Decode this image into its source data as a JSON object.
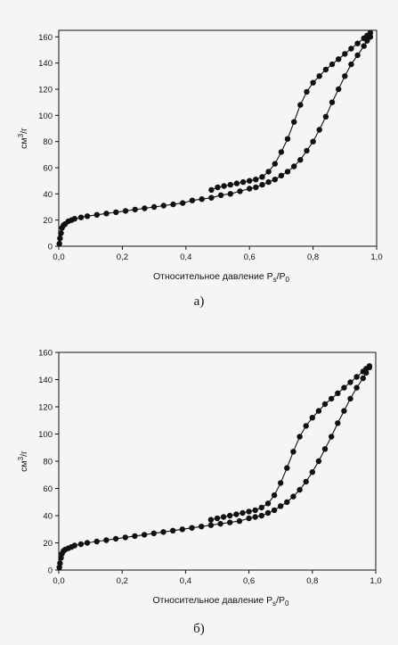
{
  "chart_data": [
    {
      "type": "scatter",
      "caption": "а)",
      "xlabel_main": "Относительное давление P",
      "xlabel_sub1": "s",
      "xlabel_mid": "/P",
      "xlabel_sub2": "0",
      "ylabel_main": "см",
      "ylabel_sup": "3",
      "ylabel_end": "/г",
      "xlim": [
        0,
        1.0
      ],
      "ylim": [
        0,
        165
      ],
      "xticks": [
        {
          "value": 0.0,
          "label": "0,0"
        },
        {
          "value": 0.2,
          "label": "0,2"
        },
        {
          "value": 0.4,
          "label": "0,4"
        },
        {
          "value": 0.6,
          "label": "0,6"
        },
        {
          "value": 0.8,
          "label": "0,8"
        },
        {
          "value": 1.0,
          "label": "1,0"
        }
      ],
      "yticks": [
        0,
        20,
        40,
        60,
        80,
        100,
        120,
        140,
        160
      ],
      "marker_color": "#111111",
      "series": [
        {
          "x": [
            0.002,
            0.004,
            0.007,
            0.01,
            0.015,
            0.02,
            0.03,
            0.04,
            0.05,
            0.07,
            0.09,
            0.12,
            0.15,
            0.18,
            0.21,
            0.24,
            0.27,
            0.3,
            0.33,
            0.36,
            0.39,
            0.42,
            0.45,
            0.48,
            0.51,
            0.54,
            0.57,
            0.6,
            0.62,
            0.64,
            0.66,
            0.68,
            0.7,
            0.72,
            0.74,
            0.76,
            0.78,
            0.8,
            0.82,
            0.84,
            0.86,
            0.88,
            0.9,
            0.92,
            0.94,
            0.96,
            0.97,
            0.98
          ],
          "y": [
            2,
            6,
            10,
            14,
            16,
            17,
            19,
            20,
            21,
            22,
            23,
            24,
            25,
            26,
            27,
            28,
            29,
            30,
            31,
            32,
            33,
            35,
            36,
            37,
            39,
            40,
            42,
            44,
            45,
            47,
            49,
            51,
            54,
            57,
            61,
            66,
            73,
            80,
            89,
            99,
            110,
            120,
            130,
            139,
            146,
            153,
            157,
            160
          ]
        },
        {
          "x": [
            0.98,
            0.97,
            0.96,
            0.94,
            0.92,
            0.9,
            0.88,
            0.86,
            0.84,
            0.82,
            0.8,
            0.78,
            0.76,
            0.74,
            0.72,
            0.7,
            0.68,
            0.66,
            0.64,
            0.62,
            0.6,
            0.58,
            0.56,
            0.54,
            0.52,
            0.5,
            0.48
          ],
          "y": [
            163,
            161,
            159,
            155,
            151,
            147,
            143,
            139,
            135,
            130,
            125,
            118,
            108,
            95,
            82,
            72,
            63,
            57,
            53,
            51,
            50,
            49,
            48,
            47,
            46,
            45,
            43
          ]
        }
      ]
    },
    {
      "type": "scatter",
      "caption": "б)",
      "xlabel_main": "Относительное давление P",
      "xlabel_sub1": "s",
      "xlabel_mid": "/P",
      "xlabel_sub2": "0",
      "ylabel_main": "см",
      "ylabel_sup": "3",
      "ylabel_end": "/г",
      "xlim": [
        0,
        1.0
      ],
      "ylim": [
        0,
        160
      ],
      "xticks": [
        {
          "value": 0.0,
          "label": "0,0"
        },
        {
          "value": 0.2,
          "label": "0,2"
        },
        {
          "value": 0.4,
          "label": "0,4"
        },
        {
          "value": 0.6,
          "label": "0,6"
        },
        {
          "value": 0.8,
          "label": "0,8"
        },
        {
          "value": 1.0,
          "label": "1,0"
        }
      ],
      "yticks": [
        0,
        20,
        40,
        60,
        80,
        100,
        120,
        140,
        160
      ],
      "marker_color": "#111111",
      "series": [
        {
          "x": [
            0.002,
            0.004,
            0.007,
            0.01,
            0.015,
            0.02,
            0.03,
            0.04,
            0.05,
            0.07,
            0.09,
            0.12,
            0.15,
            0.18,
            0.21,
            0.24,
            0.27,
            0.3,
            0.33,
            0.36,
            0.39,
            0.42,
            0.45,
            0.48,
            0.51,
            0.54,
            0.57,
            0.6,
            0.62,
            0.64,
            0.66,
            0.68,
            0.7,
            0.72,
            0.74,
            0.76,
            0.78,
            0.8,
            0.82,
            0.84,
            0.86,
            0.88,
            0.9,
            0.92,
            0.94,
            0.96,
            0.97,
            0.98
          ],
          "y": [
            2,
            5,
            9,
            12,
            14,
            15,
            16,
            17,
            18,
            19,
            20,
            21,
            22,
            23,
            24,
            25,
            26,
            27,
            28,
            29,
            30,
            31,
            32,
            33,
            34,
            35,
            36,
            38,
            39,
            40,
            42,
            44,
            47,
            50,
            54,
            59,
            65,
            72,
            80,
            89,
            98,
            108,
            117,
            126,
            134,
            141,
            145,
            149
          ]
        },
        {
          "x": [
            0.98,
            0.97,
            0.96,
            0.94,
            0.92,
            0.9,
            0.88,
            0.86,
            0.84,
            0.82,
            0.8,
            0.78,
            0.76,
            0.74,
            0.72,
            0.7,
            0.68,
            0.66,
            0.64,
            0.62,
            0.6,
            0.58,
            0.56,
            0.54,
            0.52,
            0.5,
            0.48
          ],
          "y": [
            150,
            148,
            146,
            142,
            138,
            134,
            130,
            126,
            122,
            117,
            112,
            106,
            98,
            87,
            75,
            64,
            55,
            49,
            46,
            44,
            43,
            42,
            41,
            40,
            39,
            38,
            37
          ]
        }
      ]
    }
  ]
}
